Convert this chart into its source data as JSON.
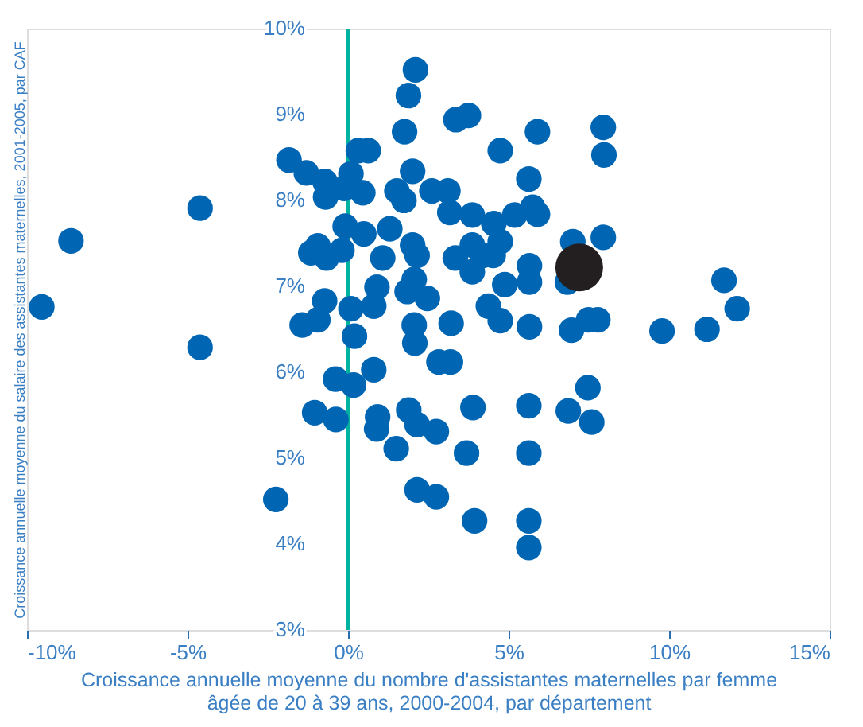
{
  "chart_data": {
    "type": "scatter",
    "xlabel": "Croissance annuelle moyenne du nombre d'assistantes maternelles par femme\nâgée de 20 à 39 ans, 2000-2004, par département",
    "ylabel": "Croissance annuelle moyenne du salaire des assistantes maternelles, 2001-2005, par CAF",
    "xlim": [
      -10,
      15
    ],
    "ylim": [
      3,
      10
    ],
    "xticks": [
      {
        "value": -10,
        "label": "-10%"
      },
      {
        "value": -5,
        "label": "-5%"
      },
      {
        "value": 0,
        "label": "0%"
      },
      {
        "value": 5,
        "label": "5%"
      },
      {
        "value": 10,
        "label": "10%"
      },
      {
        "value": 15,
        "label": "15%"
      }
    ],
    "yticks": [
      {
        "value": 3,
        "label": "3%"
      },
      {
        "value": 4,
        "label": "4%"
      },
      {
        "value": 5,
        "label": "5%"
      },
      {
        "value": 6,
        "label": "6%"
      },
      {
        "value": 7,
        "label": "7%"
      },
      {
        "value": 8,
        "label": "8%"
      },
      {
        "value": 9,
        "label": "9%"
      },
      {
        "value": 10,
        "label": "10%"
      }
    ],
    "grid": false,
    "legend": false,
    "marker": "circle",
    "series": [
      {
        "color": "#0066b3",
        "x": [
          2.1,
          1.88,
          3.36,
          3.75,
          1.76,
          7.95,
          7.97,
          5.9,
          4.74,
          -1.84,
          -1.3,
          0.32,
          0.63,
          2.01,
          5.63,
          -4.61,
          -8.63,
          -9.54,
          -4.61,
          -2.25,
          -0.72,
          0.09,
          -0.7,
          0.46,
          -0.12,
          1.52,
          1.74,
          2.61,
          3.11,
          3.17,
          3.87,
          4.54,
          5.19,
          5.75,
          5.9,
          4.74,
          4.52,
          7.0,
          7.95,
          6.83,
          5.65,
          5.65,
          4.88,
          3.87,
          3.34,
          3.87,
          4.2,
          -0.09,
          0.49,
          1.3,
          1.08,
          2.01,
          2.15,
          -1.16,
          -0.94,
          -0.67,
          -0.19,
          2.06,
          1.84,
          2.47,
          0.9,
          0.8,
          -0.73,
          -0.94,
          -1.43,
          0.09,
          0.2,
          2.06,
          2.08,
          3.21,
          4.37,
          4.74,
          5.65,
          6.96,
          7.49,
          7.78,
          9.78,
          11.18,
          11.71,
          12.12,
          2.83,
          3.19,
          -0.39,
          0.17,
          0.8,
          -1.04,
          -0.38,
          0.92,
          0.89,
          1.89,
          2.15,
          2.75,
          1.5,
          3.89,
          5.63,
          6.86,
          7.47,
          7.59,
          3.69,
          5.63,
          2.15,
          2.75,
          3.94,
          5.63,
          5.63
        ],
        "values": [
          9.52,
          9.22,
          8.94,
          8.99,
          8.8,
          8.85,
          8.53,
          8.8,
          8.58,
          8.47,
          8.32,
          8.58,
          8.58,
          8.34,
          8.25,
          7.91,
          7.53,
          6.76,
          6.29,
          4.52,
          8.22,
          8.31,
          8.04,
          8.09,
          8.14,
          8.11,
          8.0,
          8.11,
          8.11,
          7.86,
          7.83,
          7.73,
          7.83,
          7.92,
          7.84,
          7.52,
          7.36,
          7.52,
          7.57,
          7.05,
          7.24,
          7.05,
          7.02,
          7.48,
          7.33,
          7.17,
          7.36,
          7.7,
          7.61,
          7.67,
          7.33,
          7.48,
          7.36,
          7.39,
          7.47,
          7.33,
          7.42,
          7.08,
          6.94,
          6.86,
          6.99,
          6.77,
          6.83,
          6.61,
          6.55,
          6.74,
          6.42,
          6.55,
          6.34,
          6.57,
          6.77,
          6.6,
          6.53,
          6.49,
          6.61,
          6.61,
          6.48,
          6.5,
          7.07,
          6.74,
          6.12,
          6.12,
          5.92,
          5.85,
          6.03,
          5.53,
          5.45,
          5.48,
          5.34,
          5.56,
          5.39,
          5.31,
          5.11,
          5.59,
          5.61,
          5.55,
          5.82,
          5.42,
          5.06,
          5.06,
          4.63,
          4.55,
          4.27,
          4.27,
          3.96
        ]
      },
      {
        "color": "#231f20",
        "x": [
          7.2
        ],
        "values": [
          7.22
        ]
      }
    ]
  }
}
